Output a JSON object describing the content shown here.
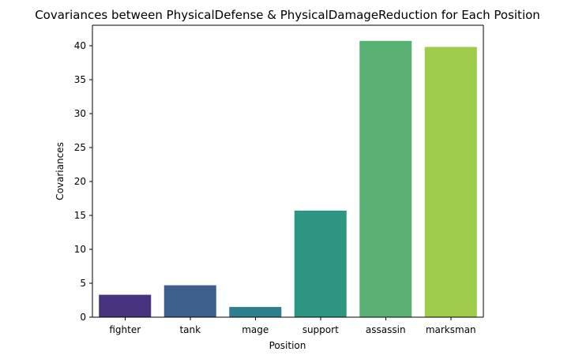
{
  "chart_data": {
    "type": "bar",
    "title": "Covariances between PhysicalDefense & PhysicalDamageReduction for Each Position",
    "xlabel": "Position",
    "ylabel": "Covariances",
    "categories": [
      "fighter",
      "tank",
      "mage",
      "support",
      "assassin",
      "marksman"
    ],
    "values": [
      3.3,
      4.7,
      1.5,
      15.7,
      40.7,
      39.8
    ],
    "colors": [
      "#46327e",
      "#3e5f8c",
      "#2d7f8e",
      "#2e9581",
      "#59b273",
      "#9dcc4a"
    ],
    "ylim": [
      0,
      43
    ],
    "yticks": [
      0,
      5,
      10,
      15,
      20,
      25,
      30,
      35,
      40
    ],
    "grid": false,
    "legend": "none"
  }
}
